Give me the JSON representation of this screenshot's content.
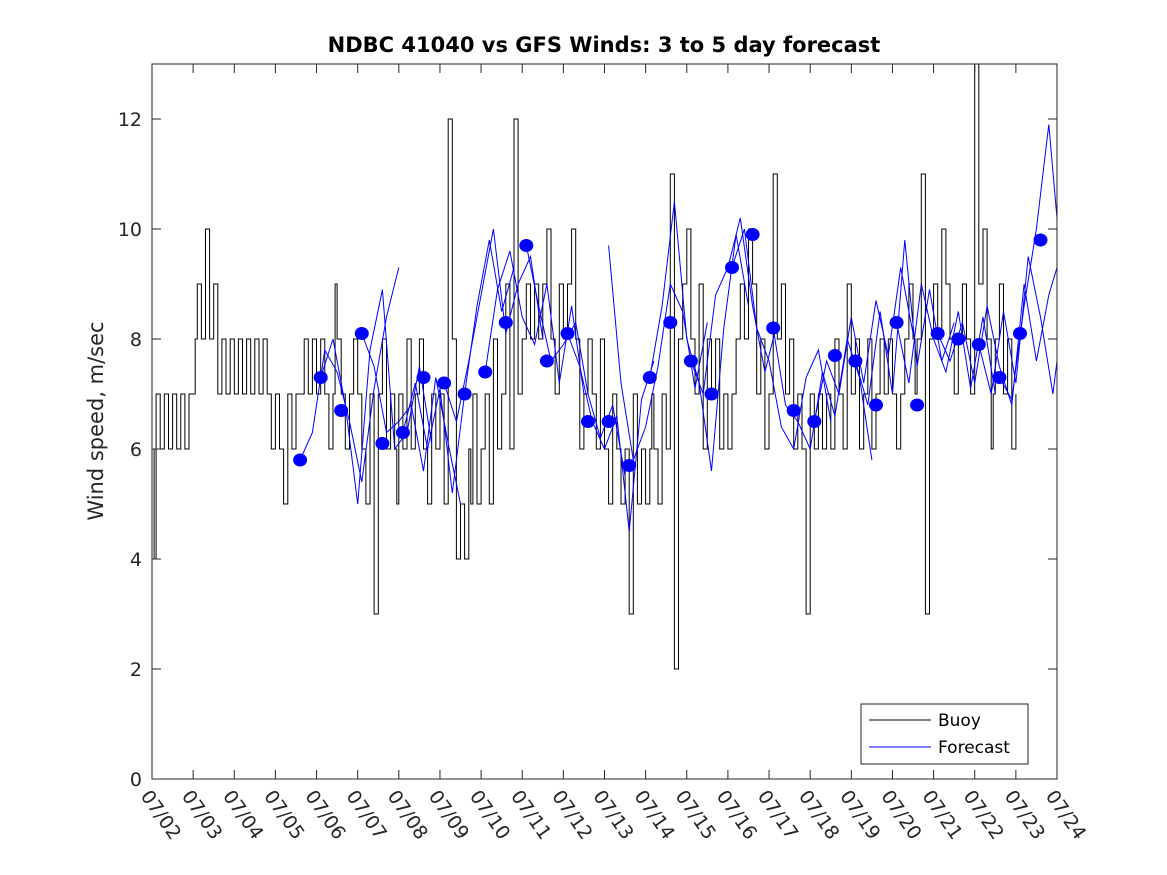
{
  "chart_data": {
    "type": "line",
    "title": "NDBC 41040 vs GFS Winds: 3 to 5 day forecast",
    "xlabel": "",
    "ylabel": "Wind speed, m/sec",
    "xlim": [
      "07/02",
      "07/24"
    ],
    "ylim": [
      0,
      13
    ],
    "yticks": [
      0,
      2,
      4,
      6,
      8,
      10,
      12
    ],
    "xticks": [
      "07/02",
      "07/03",
      "07/04",
      "07/05",
      "07/06",
      "07/07",
      "07/08",
      "07/09",
      "07/10",
      "07/11",
      "07/12",
      "07/13",
      "07/14",
      "07/15",
      "07/16",
      "07/17",
      "07/18",
      "07/19",
      "07/20",
      "07/21",
      "07/22",
      "07/23",
      "07/24"
    ],
    "grid": false,
    "legend": {
      "placement": "bottom-right",
      "entries": [
        "Buoy",
        "Forecast"
      ]
    },
    "colors": {
      "buoy": "#000000",
      "forecast": "#0000ff"
    },
    "buoy": {
      "name": "Buoy",
      "x_day": [
        2.0,
        2.05,
        2.1,
        2.2,
        2.3,
        2.4,
        2.5,
        2.6,
        2.7,
        2.8,
        2.9,
        3.0,
        3.05,
        3.1,
        3.2,
        3.3,
        3.4,
        3.5,
        3.6,
        3.7,
        3.8,
        3.9,
        4.0,
        4.1,
        4.2,
        4.3,
        4.4,
        4.5,
        4.6,
        4.7,
        4.8,
        4.9,
        5.0,
        5.1,
        5.2,
        5.3,
        5.4,
        5.5,
        5.6,
        5.7,
        5.8,
        5.9,
        6.0,
        6.1,
        6.2,
        6.3,
        6.4,
        6.45,
        6.5,
        6.6,
        6.7,
        6.8,
        6.9,
        7.0,
        7.1,
        7.2,
        7.3,
        7.4,
        7.5,
        7.6,
        7.7,
        7.8,
        7.9,
        7.95,
        8.0,
        8.1,
        8.2,
        8.3,
        8.4,
        8.45,
        8.5,
        8.6,
        8.7,
        8.8,
        8.9,
        9.0,
        9.1,
        9.2,
        9.3,
        9.4,
        9.5,
        9.6,
        9.7,
        9.75,
        9.8,
        9.9,
        10.0,
        10.1,
        10.2,
        10.3,
        10.4,
        10.5,
        10.6,
        10.7,
        10.8,
        10.9,
        11.0,
        11.1,
        11.2,
        11.3,
        11.4,
        11.5,
        11.6,
        11.7,
        11.8,
        11.9,
        12.0,
        12.1,
        12.2,
        12.3,
        12.4,
        12.5,
        12.6,
        12.7,
        12.8,
        12.9,
        13.0,
        13.1,
        13.2,
        13.3,
        13.4,
        13.5,
        13.6,
        13.7,
        13.8,
        13.9,
        14.0,
        14.1,
        14.15,
        14.2,
        14.3,
        14.4,
        14.5,
        14.6,
        14.7,
        14.8,
        14.9,
        15.0,
        15.1,
        15.2,
        15.3,
        15.4,
        15.5,
        15.6,
        15.7,
        15.8,
        15.9,
        16.0,
        16.1,
        16.2,
        16.3,
        16.4,
        16.5,
        16.6,
        16.7,
        16.8,
        16.9,
        17.0,
        17.1,
        17.2,
        17.3,
        17.4,
        17.5,
        17.6,
        17.7,
        17.8,
        17.9,
        18.0,
        18.1,
        18.2,
        18.3,
        18.4,
        18.5,
        18.6,
        18.7,
        18.8,
        18.9,
        19.0,
        19.1,
        19.2,
        19.3,
        19.4,
        19.5,
        19.6,
        19.7,
        19.8,
        19.9,
        20.0,
        20.1,
        20.2,
        20.3,
        20.4,
        20.5,
        20.55,
        20.6,
        20.7,
        20.8,
        20.9,
        21.0,
        21.1,
        21.2,
        21.3,
        21.4,
        21.5,
        21.6,
        21.7,
        21.8,
        21.9,
        22.0,
        22.1,
        22.2,
        22.3,
        22.4,
        22.45,
        22.5,
        22.6,
        22.7,
        22.8,
        22.9,
        23.0
      ],
      "y": [
        6,
        4,
        7,
        6,
        7,
        6,
        7,
        6,
        7,
        6,
        7,
        7,
        8,
        9,
        8,
        10,
        8,
        9,
        7,
        8,
        7,
        8,
        7,
        8,
        7,
        8,
        7,
        8,
        7,
        8,
        7,
        6,
        7,
        6,
        5,
        7,
        6,
        7,
        7,
        8,
        7,
        8,
        7,
        8,
        7,
        6,
        7,
        9,
        8,
        7,
        6,
        7,
        8,
        7,
        6,
        5,
        7,
        3,
        7,
        8,
        6,
        7,
        6,
        5,
        7,
        6,
        8,
        6,
        7,
        7,
        8,
        6,
        5,
        7,
        6,
        7,
        5,
        12,
        8,
        4,
        5,
        4,
        6,
        5,
        7,
        5,
        6,
        7,
        5,
        8,
        6,
        7,
        9,
        6,
        12,
        7,
        8,
        9,
        8,
        9,
        8,
        9,
        10,
        8,
        7,
        9,
        8,
        9,
        10,
        8,
        6,
        7,
        8,
        7,
        6,
        8,
        6,
        5,
        7,
        6,
        5,
        6,
        3,
        7,
        5,
        6,
        5,
        6,
        7,
        6,
        5,
        7,
        6,
        11,
        2,
        8,
        9,
        10,
        8,
        7,
        9,
        6,
        8,
        7,
        8,
        6,
        7,
        6,
        7,
        8,
        9,
        8,
        10,
        9,
        7,
        8,
        6,
        7,
        11,
        8,
        9,
        7,
        8,
        6,
        7,
        6,
        3,
        7,
        6,
        7,
        6,
        7,
        6,
        8,
        7,
        6,
        9,
        7,
        8,
        6,
        7,
        8,
        6,
        7,
        8,
        7,
        8,
        7,
        6,
        7,
        8,
        9,
        8,
        7,
        8,
        11,
        3,
        8,
        9,
        8,
        10,
        9,
        8,
        7,
        8,
        9,
        8,
        7,
        13,
        9,
        10,
        8,
        6,
        7,
        8,
        9,
        7,
        8,
        6,
        7
      ]
    },
    "forecast_runs": [
      {
        "x_day": [
          5.6,
          5.9,
          6.2,
          6.5,
          6.8,
          7.1,
          7.4,
          7.7,
          8.0
        ],
        "y": [
          5.8,
          6.3,
          7.8,
          7.4,
          6.5,
          5.4,
          7.1,
          8.4,
          9.3
        ]
      },
      {
        "x_day": [
          6.1,
          6.4,
          6.7,
          7.0,
          7.3,
          7.6,
          7.9,
          8.2,
          8.5,
          8.8
        ],
        "y": [
          7.3,
          8.0,
          6.8,
          5.0,
          7.8,
          8.9,
          6.0,
          6.3,
          7.5,
          6.1
        ]
      },
      {
        "x_day": [
          7.1,
          7.4,
          7.7,
          8.0,
          8.3,
          8.6,
          8.9,
          9.2,
          9.5
        ],
        "y": [
          8.1,
          7.5,
          6.3,
          6.5,
          6.8,
          5.6,
          7.3,
          6.1,
          5.0
        ]
      },
      {
        "x_day": [
          8.1,
          8.4,
          8.7,
          9.0,
          9.3,
          9.6,
          9.9,
          10.2,
          10.5,
          10.8
        ],
        "y": [
          6.3,
          7.2,
          6.0,
          7.1,
          5.2,
          7.0,
          8.6,
          9.8,
          8.5,
          9.3
        ]
      },
      {
        "x_day": [
          9.1,
          9.4,
          9.7,
          10.0,
          10.3,
          10.6,
          10.9,
          11.2,
          11.5
        ],
        "y": [
          7.2,
          6.5,
          7.6,
          8.8,
          10.0,
          8.1,
          9.0,
          9.5,
          8.0
        ]
      },
      {
        "x_day": [
          10.1,
          10.4,
          10.7,
          11.0,
          11.3,
          11.6,
          11.9,
          12.2,
          12.5
        ],
        "y": [
          7.4,
          8.9,
          9.6,
          8.4,
          7.9,
          9.0,
          7.2,
          8.6,
          7.0
        ]
      },
      {
        "x_day": [
          11.1,
          11.4,
          11.7,
          12.0,
          12.3,
          12.6,
          12.9,
          13.2,
          13.5
        ],
        "y": [
          9.7,
          8.6,
          7.6,
          7.9,
          8.3,
          7.0,
          6.2,
          6.8,
          5.5
        ]
      },
      {
        "x_day": [
          12.1,
          12.4,
          12.7,
          13.0,
          13.3,
          13.6,
          13.9,
          14.2
        ],
        "y": [
          8.1,
          7.5,
          6.5,
          6.0,
          6.6,
          4.5,
          6.9,
          7.6
        ]
      },
      {
        "x_day": [
          13.1,
          13.4,
          13.7,
          14.0,
          14.3,
          14.6,
          14.9,
          15.2,
          15.5
        ],
        "y": [
          9.7,
          7.2,
          5.8,
          6.4,
          7.5,
          9.0,
          8.5,
          7.1,
          8.3
        ]
      },
      {
        "x_day": [
          14.1,
          14.4,
          14.7,
          15.0,
          15.3,
          15.6,
          15.9,
          16.2,
          16.5
        ],
        "y": [
          7.3,
          8.6,
          10.5,
          8.0,
          7.2,
          5.6,
          8.2,
          9.9,
          8.6
        ]
      },
      {
        "x_day": [
          15.1,
          15.4,
          15.7,
          16.0,
          16.3,
          16.6,
          16.9,
          17.2
        ],
        "y": [
          7.6,
          7.0,
          8.8,
          9.3,
          10.2,
          8.6,
          7.4,
          8.3
        ]
      },
      {
        "x_day": [
          16.1,
          16.4,
          16.7,
          17.0,
          17.3,
          17.6,
          17.9,
          18.2,
          18.5
        ],
        "y": [
          9.3,
          10.0,
          8.2,
          7.6,
          6.4,
          6.0,
          7.3,
          7.8,
          6.5
        ]
      },
      {
        "x_day": [
          17.1,
          17.4,
          17.7,
          18.0,
          18.3,
          18.6,
          18.9,
          19.2,
          19.5
        ],
        "y": [
          8.2,
          6.8,
          6.5,
          6.0,
          7.4,
          6.6,
          8.0,
          7.3,
          5.8
        ]
      },
      {
        "x_day": [
          18.1,
          18.4,
          18.7,
          19.0,
          19.3,
          19.6,
          19.9,
          20.2,
          20.5
        ],
        "y": [
          6.5,
          7.6,
          7.0,
          8.4,
          7.2,
          8.7,
          7.7,
          9.3,
          8.1
        ]
      },
      {
        "x_day": [
          19.1,
          19.4,
          19.7,
          20.0,
          20.3,
          20.6,
          20.9,
          21.2,
          21.5
        ],
        "y": [
          7.6,
          6.8,
          8.5,
          7.0,
          9.8,
          7.5,
          8.9,
          7.6,
          8.3
        ]
      },
      {
        "x_day": [
          20.1,
          20.4,
          20.7,
          21.0,
          21.3,
          21.6,
          21.9,
          22.2,
          22.5
        ],
        "y": [
          8.3,
          7.2,
          9.0,
          8.0,
          7.4,
          8.5,
          7.1,
          8.4,
          7.0
        ]
      },
      {
        "x_day": [
          21.1,
          21.4,
          21.7,
          22.0,
          22.3,
          22.6,
          22.9,
          23.2,
          23.5,
          23.8,
          24.0
        ],
        "y": [
          8.1,
          7.6,
          8.3,
          7.2,
          8.6,
          7.5,
          6.8,
          9.0,
          7.6,
          8.8,
          9.3
        ]
      },
      {
        "x_day": [
          22.1,
          22.4,
          22.7,
          23.0,
          23.3,
          23.6,
          23.9,
          24.0
        ],
        "y": [
          7.9,
          7.0,
          8.5,
          7.2,
          9.5,
          8.4,
          7.0,
          7.6
        ]
      },
      {
        "x_day": [
          22.6,
          22.9,
          23.2,
          23.5,
          23.8,
          24.0
        ],
        "y": [
          7.3,
          6.9,
          8.6,
          10.0,
          11.9,
          10.2
        ]
      }
    ],
    "forecast_markers": {
      "x_day": [
        5.6,
        6.1,
        6.6,
        7.1,
        7.6,
        8.1,
        8.6,
        9.1,
        9.6,
        10.1,
        10.6,
        11.1,
        11.6,
        12.1,
        12.6,
        13.1,
        13.6,
        14.1,
        14.6,
        15.1,
        15.6,
        16.1,
        16.6,
        17.1,
        17.6,
        18.1,
        18.6,
        19.1,
        19.6,
        20.1,
        20.6,
        21.1,
        21.6,
        22.1,
        22.6,
        23.1,
        23.6
      ],
      "y": [
        5.8,
        7.3,
        6.7,
        8.1,
        6.1,
        6.3,
        7.3,
        7.2,
        7.0,
        7.4,
        8.3,
        9.7,
        7.6,
        8.1,
        6.5,
        6.5,
        5.7,
        7.3,
        8.3,
        7.6,
        7.0,
        9.3,
        9.9,
        8.2,
        6.7,
        6.5,
        7.7,
        7.6,
        6.8,
        8.3,
        6.8,
        8.1,
        8.0,
        7.9,
        7.3,
        8.1,
        9.8
      ]
    }
  }
}
